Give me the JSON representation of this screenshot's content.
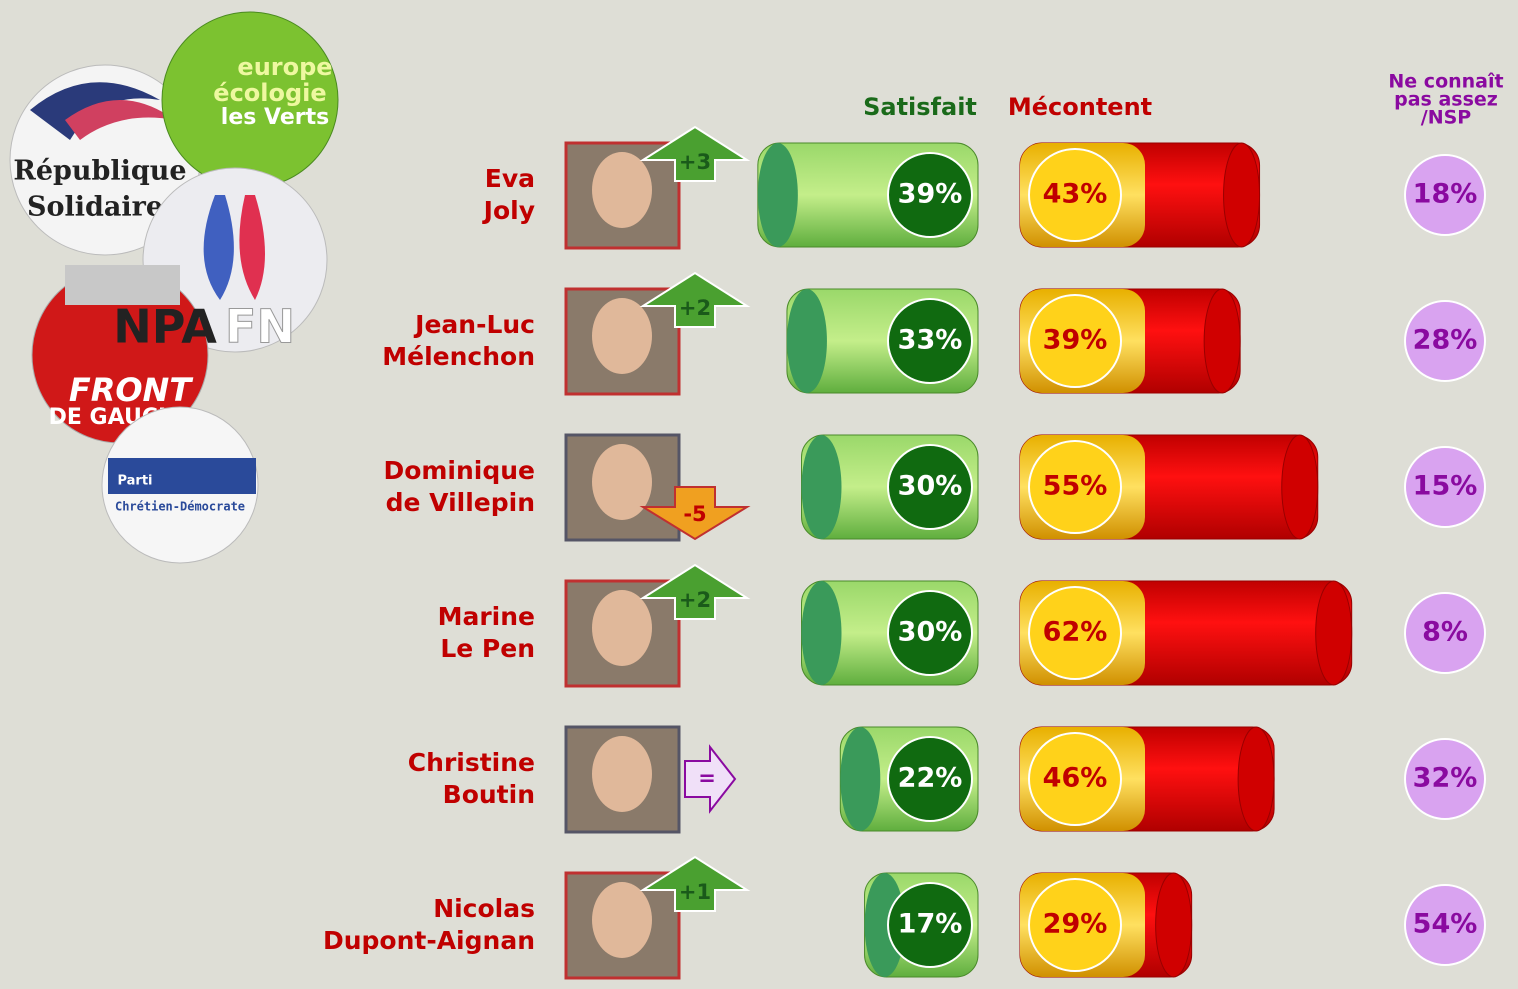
{
  "chart_data": {
    "type": "bar",
    "categories": [
      [
        "Eva",
        "Joly"
      ],
      [
        "Jean-Luc",
        "Mélenchon"
      ],
      [
        "Dominique",
        "de Villepin"
      ],
      [
        "Marine",
        "Le Pen"
      ],
      [
        "Christine",
        "Boutin"
      ],
      [
        "Nicolas",
        "Dupont-Aignan"
      ]
    ],
    "changes": [
      "+3",
      "+2",
      "-5",
      "+2",
      "=",
      "+1"
    ],
    "xlim": [
      0,
      100
    ],
    "series": [
      {
        "name": "Satisfait",
        "color": "#1a7a1a",
        "values": [
          39,
          33,
          30,
          30,
          22,
          17
        ],
        "value_labels": [
          "39%",
          "33%",
          "30%",
          "30%",
          "22%",
          "17%"
        ]
      },
      {
        "name": "Mécontent",
        "color": "#e00000",
        "values": [
          43,
          39,
          55,
          62,
          46,
          29
        ],
        "value_labels": [
          "43%",
          "39%",
          "55%",
          "62%",
          "46%",
          "29%"
        ]
      },
      {
        "name": [
          "Ne connaît",
          "pas assez",
          "/NSP"
        ],
        "color": "#d9a3f0",
        "values": [
          18,
          28,
          15,
          8,
          32,
          54
        ],
        "value_labels": [
          "18%",
          "28%",
          "15%",
          "8%",
          "32%",
          "54%"
        ]
      }
    ]
  },
  "logos": [
    [
      "République",
      "Solidaire"
    ],
    [
      "europe",
      "écologie",
      "les Verts"
    ],
    "FN",
    "NPA",
    [
      "FRONT",
      "DE GAUCHE"
    ],
    [
      "Parti",
      "Chrétien-Démocrate"
    ]
  ]
}
